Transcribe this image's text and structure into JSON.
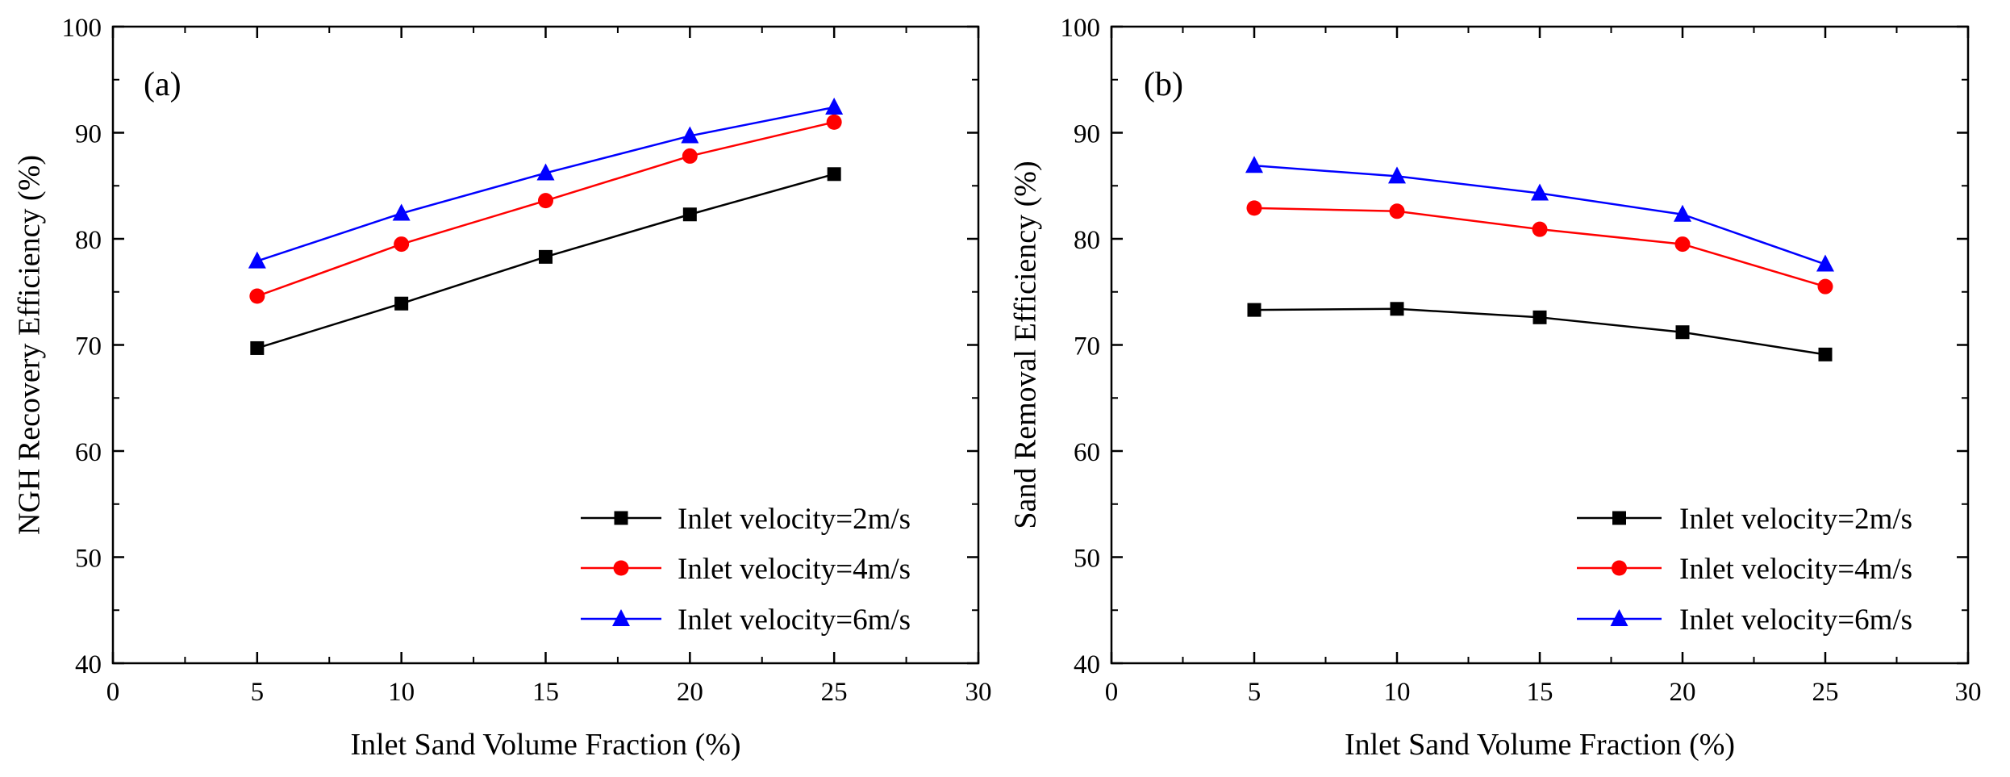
{
  "colors": {
    "series_2ms": "#000000",
    "series_4ms": "#ff0000",
    "series_6ms": "#0000ff",
    "axis": "#000000",
    "background": "#ffffff"
  },
  "chart_data": [
    {
      "type": "line",
      "panel_label": "(a)",
      "xlabel": "Inlet Sand Volume Fraction (%)",
      "ylabel": "NGH Recovery Efficiency (%)",
      "xlim": [
        0,
        30
      ],
      "ylim": [
        40,
        100
      ],
      "xticks": [
        0,
        5,
        10,
        15,
        20,
        25,
        30
      ],
      "yticks": [
        40,
        50,
        60,
        70,
        80,
        90,
        100
      ],
      "x": [
        5,
        10,
        15,
        20,
        25
      ],
      "legend_position": "bottom-right",
      "series": [
        {
          "name": "Inlet velocity=2m/s",
          "marker": "square",
          "color": "#000000",
          "values": [
            69.7,
            73.9,
            78.3,
            82.3,
            86.1
          ]
        },
        {
          "name": "Inlet velocity=4m/s",
          "marker": "circle",
          "color": "#ff0000",
          "values": [
            74.6,
            79.5,
            83.6,
            87.8,
            91.0
          ]
        },
        {
          "name": "Inlet velocity=6m/s",
          "marker": "triangle",
          "color": "#0000ff",
          "values": [
            77.9,
            82.4,
            86.2,
            89.7,
            92.4
          ]
        }
      ]
    },
    {
      "type": "line",
      "panel_label": "(b)",
      "xlabel": "Inlet Sand Volume Fraction (%)",
      "ylabel": "Sand Removal Efficiency (%)",
      "xlim": [
        0,
        30
      ],
      "ylim": [
        40,
        100
      ],
      "xticks": [
        0,
        5,
        10,
        15,
        20,
        25,
        30
      ],
      "yticks": [
        40,
        50,
        60,
        70,
        80,
        90,
        100
      ],
      "x": [
        5,
        10,
        15,
        20,
        25
      ],
      "legend_position": "bottom-right",
      "series": [
        {
          "name": "Inlet velocity=2m/s",
          "marker": "square",
          "color": "#000000",
          "values": [
            73.3,
            73.4,
            72.6,
            71.2,
            69.1
          ]
        },
        {
          "name": "Inlet velocity=4m/s",
          "marker": "circle",
          "color": "#ff0000",
          "values": [
            82.9,
            82.6,
            80.9,
            79.5,
            75.5
          ]
        },
        {
          "name": "Inlet velocity=6m/s",
          "marker": "triangle",
          "color": "#0000ff",
          "values": [
            86.9,
            85.9,
            84.3,
            82.3,
            77.6
          ]
        }
      ]
    }
  ]
}
